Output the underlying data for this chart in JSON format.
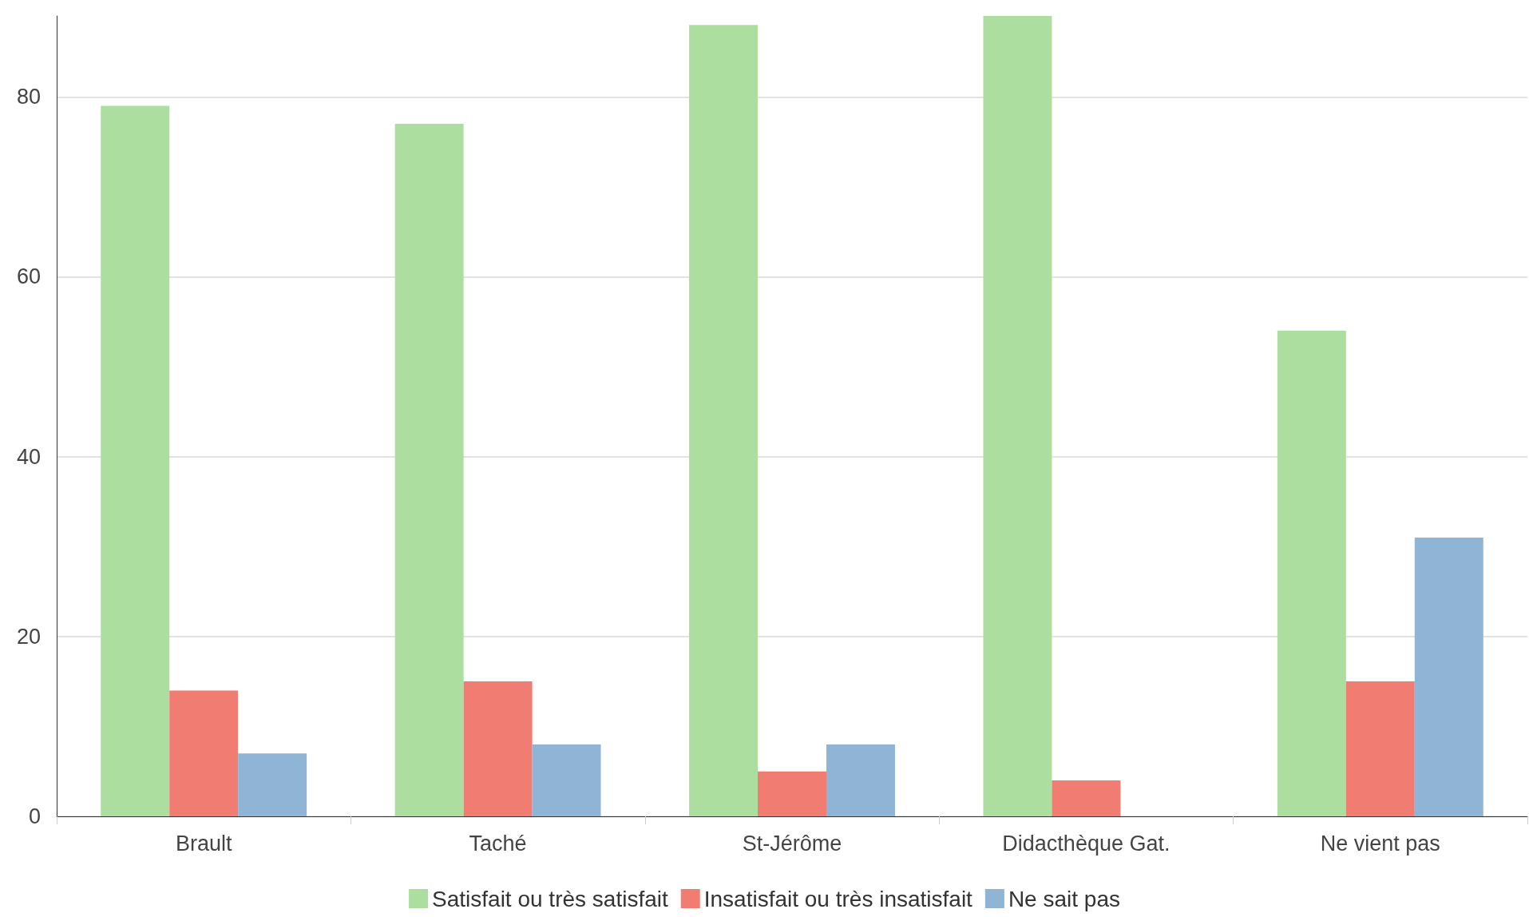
{
  "chart_data": {
    "type": "bar",
    "categories": [
      "Brault",
      "Taché",
      "St-Jérôme",
      "Didacthèque Gat.",
      "Ne vient pas"
    ],
    "series": [
      {
        "name": "Satisfait ou très satisfait",
        "color": "#acdf9f",
        "values": [
          79,
          77,
          88,
          89,
          54
        ]
      },
      {
        "name": "Insatisfait ou très insatisfait",
        "color": "#f17c72",
        "values": [
          14,
          15,
          5,
          4,
          15
        ]
      },
      {
        "name": "Ne sait pas",
        "color": "#8fb4d6",
        "values": [
          7,
          8,
          8,
          0,
          31
        ]
      }
    ],
    "ylim": [
      0,
      89
    ],
    "yticks": [
      0,
      20,
      40,
      60,
      80
    ],
    "grid": "y",
    "legend": "bottom"
  }
}
